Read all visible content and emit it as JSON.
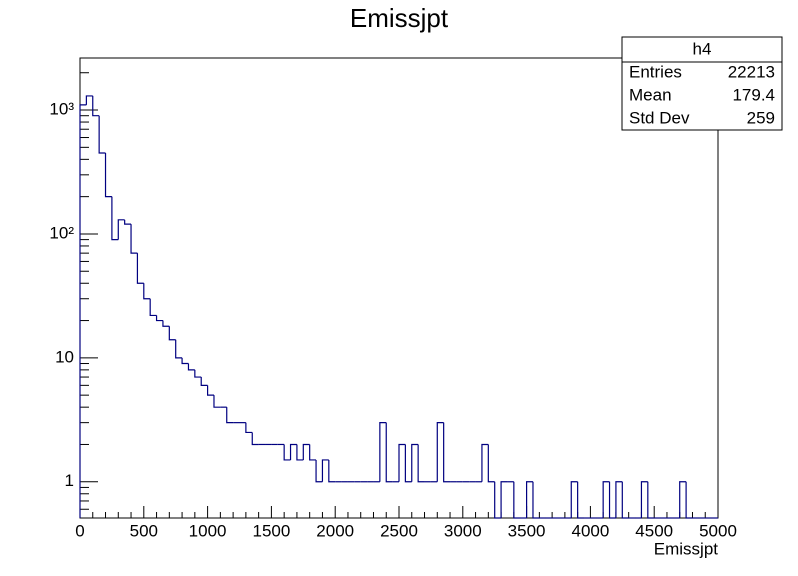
{
  "chart_data": {
    "type": "histogram",
    "title": "Emissjpt",
    "x_label": "Emissjpt",
    "color": "#000080",
    "log_y": true,
    "xlim": [
      0,
      5000
    ],
    "xticks": [
      0,
      500,
      1000,
      1500,
      2000,
      2500,
      3000,
      3500,
      4000,
      4500,
      5000
    ],
    "ylim": [
      0.51,
      2630
    ],
    "yticks": [
      1,
      10,
      {
        "value": 100,
        "label": "10²"
      },
      {
        "value": 1000,
        "label": "10³"
      }
    ],
    "bins": [
      0,
      50,
      100,
      150,
      200,
      250,
      300,
      350,
      400,
      450,
      500,
      550,
      600,
      650,
      700,
      750,
      800,
      850,
      900,
      950,
      1000,
      1050,
      1100,
      1150,
      1200,
      1250,
      1300,
      1350,
      1400,
      1450,
      1500,
      1550,
      1600,
      1650,
      1700,
      1750,
      1800,
      1850,
      1900,
      1950,
      2000,
      2050,
      2100,
      2150,
      2200,
      2250,
      2300,
      2350,
      2400,
      2450,
      2500,
      2550,
      2600,
      2650,
      2700,
      2750,
      2800,
      2850,
      2900,
      2950,
      3000,
      3050,
      3100,
      3150,
      3200,
      3250,
      3300,
      3350,
      3400,
      3450,
      3500,
      3550,
      3600,
      3650,
      3700,
      3750,
      3800,
      3850,
      3900,
      3950,
      4000,
      4050,
      4100,
      4150,
      4200,
      4250,
      4300,
      4350,
      4400,
      4450,
      4500,
      4550,
      4600,
      4650,
      4700,
      4750,
      4800,
      4850,
      4900,
      4950,
      5000
    ],
    "values": [
      1100,
      1300,
      900,
      450,
      200,
      90,
      130,
      120,
      70,
      40,
      30,
      22,
      20,
      18,
      14,
      10,
      9,
      8,
      7,
      6,
      5,
      4,
      4,
      3,
      3,
      3,
      2.5,
      2,
      2,
      2,
      2,
      2,
      1.5,
      2,
      1.5,
      2,
      1.5,
      1,
      1.5,
      1,
      1,
      1,
      1,
      1,
      1,
      1,
      1,
      3,
      1,
      1,
      2,
      1,
      2,
      1,
      1,
      1,
      3,
      1,
      1,
      1,
      1,
      1,
      1,
      2,
      1,
      0,
      1,
      1,
      0,
      0,
      1,
      0,
      0,
      0,
      0,
      0,
      0,
      1,
      0,
      0,
      0,
      0,
      1,
      0,
      1,
      0,
      0,
      0,
      1,
      0,
      0,
      0,
      0,
      0,
      1,
      0,
      0,
      0,
      0,
      0
    ],
    "stats": {
      "title": "h4",
      "rows": [
        [
          "Entries",
          22213
        ],
        [
          "Mean",
          179.4
        ],
        [
          "Std Dev",
          259
        ]
      ]
    }
  }
}
